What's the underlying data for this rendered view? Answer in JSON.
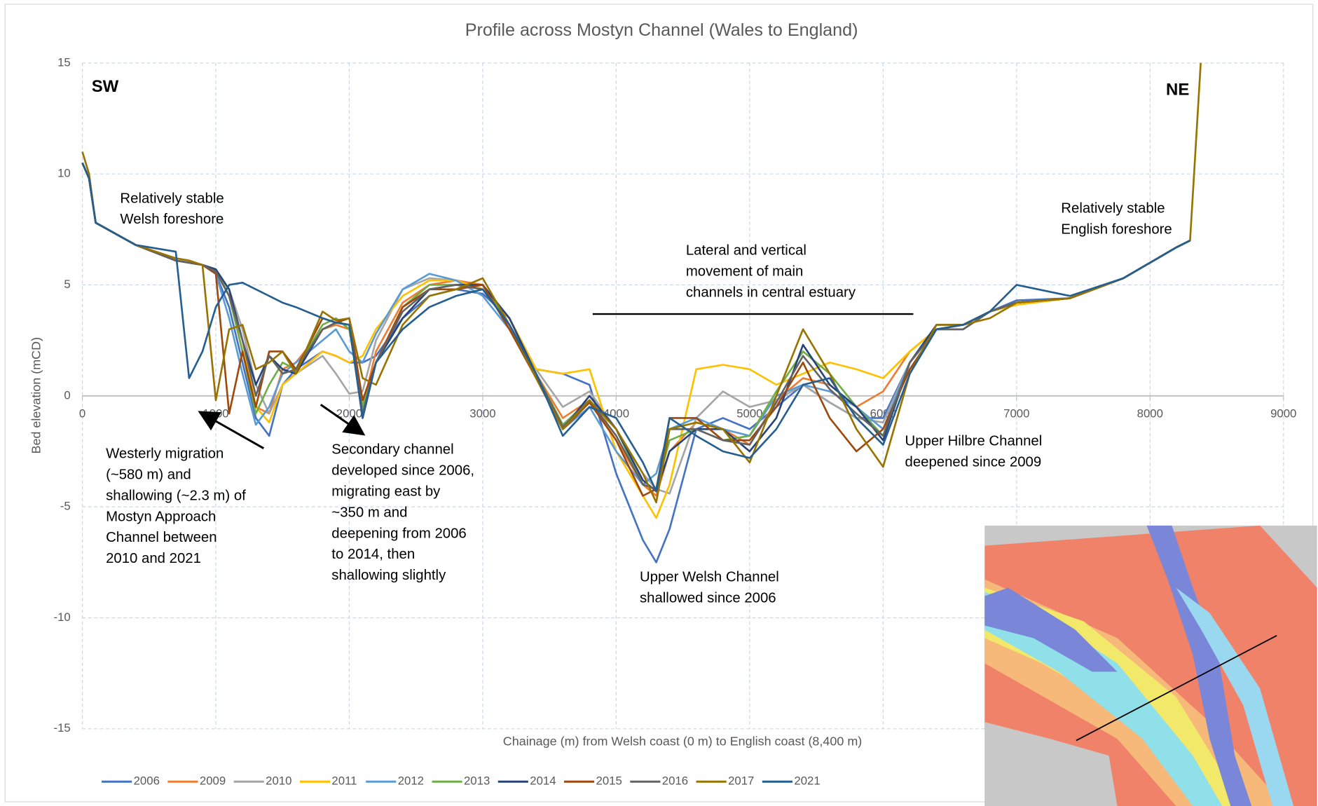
{
  "chart_data": {
    "type": "line",
    "title": "Profile across Mostyn Channel (Wales to England)",
    "x_label": "Chainage (m) from Welsh coast (0 m) to English coast (8,400 m)",
    "y_label": "Bed elevation (mCD)",
    "labels": [
      "SW",
      "NE"
    ],
    "annotations": [
      [
        "Relatively stable",
        "Welsh foreshore"
      ],
      [
        "Relatively stable",
        "English foreshore"
      ],
      [
        "Lateral and vertical",
        "movement of main",
        "channels in central estuary"
      ],
      [
        "Westerly migration",
        "(~580 m) and",
        "shallowing (~2.3 m) of",
        "Mostyn Approach",
        "Channel between",
        "2010 and 2021"
      ],
      [
        "Secondary channel",
        "developed since 2006,",
        "migrating east by",
        "~350 m and",
        "deepening from 2006",
        "to 2014, then",
        "shallowing slightly"
      ],
      [
        "Upper Welsh Channel",
        "shallowed since 2006"
      ],
      [
        "Upper Hilbre Channel",
        "deepened since 2009"
      ]
    ],
    "xlim": [
      0,
      9000
    ],
    "xticks": [
      0,
      1000,
      2000,
      3000,
      4000,
      5000,
      6000,
      7000,
      8000,
      9000
    ],
    "ylim": [
      -15,
      15
    ],
    "yticks": [
      -15,
      -10,
      -5,
      0,
      5,
      10,
      15
    ],
    "grid": true,
    "x": [
      0,
      50,
      100,
      400,
      700,
      800,
      900,
      1000,
      1100,
      1200,
      1300,
      1400,
      1500,
      1600,
      1800,
      1900,
      2000,
      2100,
      2200,
      2400,
      2600,
      2800,
      3000,
      3200,
      3400,
      3600,
      3800,
      4000,
      4200,
      4300,
      4400,
      4600,
      4800,
      5000,
      5200,
      5400,
      5600,
      5800,
      6000,
      6200,
      6400,
      6600,
      6800,
      7000,
      7400,
      7800,
      8200,
      8300,
      8380
    ],
    "series": [
      {
        "name": "2006",
        "color": "#4472c4",
        "values": [
          10.5,
          9.8,
          7.8,
          6.8,
          6.1,
          6.0,
          5.9,
          5.5,
          4.0,
          1.5,
          -1.0,
          -1.8,
          0.5,
          1.2,
          2.0,
          1.8,
          1.5,
          1.5,
          1.8,
          3.5,
          4.5,
          4.8,
          4.6,
          3.5,
          1.2,
          1.0,
          0.5,
          -3.5,
          -6.5,
          -7.5,
          -6.0,
          -1.5,
          -1.0,
          -1.5,
          -0.5,
          0.5,
          -0.3,
          -1.0,
          -1.0,
          1.5,
          3.0,
          3.2,
          3.8,
          4.3,
          4.4,
          5.3,
          6.7,
          7.0,
          null
        ]
      },
      {
        "name": "2009",
        "color": "#ed7d31",
        "values": [
          10.5,
          9.8,
          7.8,
          6.8,
          6.1,
          6.0,
          5.9,
          5.7,
          4.5,
          2.0,
          -0.5,
          -0.8,
          1.2,
          1.5,
          3.0,
          3.2,
          3.0,
          -0.5,
          2.0,
          4.2,
          5.0,
          5.2,
          5.0,
          3.2,
          1.0,
          -1.0,
          -0.2,
          -2.0,
          -4.0,
          -4.5,
          -2.5,
          -1.2,
          -1.5,
          -2.2,
          -0.2,
          0.8,
          0.5,
          -0.5,
          0.2,
          2.0,
          3.0,
          3.2,
          3.8,
          4.2,
          4.4,
          5.3,
          6.7,
          7.0,
          null
        ]
      },
      {
        "name": "2010",
        "color": "#a5a5a5",
        "values": [
          10.5,
          9.8,
          7.8,
          6.8,
          6.1,
          6.0,
          5.9,
          5.6,
          4.8,
          3.0,
          0.5,
          -0.8,
          0.5,
          1.0,
          1.8,
          1.0,
          0.1,
          0.2,
          2.5,
          4.8,
          5.3,
          5.2,
          4.8,
          3.2,
          1.2,
          -0.5,
          0.2,
          -1.5,
          -3.5,
          -4.2,
          -4.4,
          -1.0,
          0.2,
          -0.5,
          -0.2,
          0.5,
          -0.3,
          -1.0,
          -1.2,
          1.5,
          3.0,
          3.0,
          3.8,
          4.2,
          4.4,
          5.3,
          6.7,
          7.0,
          null
        ]
      },
      {
        "name": "2011",
        "color": "#ffc000",
        "values": [
          10.5,
          9.8,
          7.8,
          6.8,
          6.1,
          6.0,
          5.9,
          5.6,
          4.5,
          2.5,
          -0.5,
          -1.2,
          0.5,
          1.0,
          2.0,
          1.8,
          1.5,
          1.8,
          3.0,
          4.5,
          5.2,
          5.2,
          4.8,
          3.5,
          1.2,
          1.0,
          1.2,
          -2.5,
          -4.5,
          -5.5,
          -4.0,
          1.2,
          1.4,
          1.2,
          0.5,
          1.0,
          1.5,
          1.2,
          0.8,
          2.0,
          3.0,
          3.2,
          3.8,
          4.1,
          4.4,
          5.3,
          6.7,
          7.0,
          null
        ]
      },
      {
        "name": "2012",
        "color": "#5b9bd5",
        "values": [
          10.5,
          9.8,
          7.8,
          6.8,
          6.1,
          6.0,
          5.9,
          5.5,
          3.5,
          1.0,
          -1.3,
          -0.5,
          1.0,
          1.5,
          2.5,
          3.0,
          2.0,
          1.5,
          2.8,
          4.8,
          5.5,
          5.2,
          4.5,
          3.0,
          1.0,
          -1.5,
          -0.5,
          -2.5,
          -4.0,
          -3.5,
          -1.5,
          -1.0,
          -1.5,
          -1.8,
          0.0,
          0.5,
          0.2,
          -0.5,
          -1.5,
          1.5,
          3.0,
          3.0,
          3.8,
          4.2,
          4.4,
          5.3,
          6.7,
          7.0,
          null
        ]
      },
      {
        "name": "2013",
        "color": "#70ad47",
        "values": [
          10.5,
          9.8,
          7.8,
          6.8,
          6.1,
          6.0,
          5.9,
          5.7,
          4.5,
          2.0,
          -0.8,
          0.5,
          1.5,
          1.2,
          3.2,
          3.5,
          3.0,
          -0.5,
          1.5,
          4.0,
          5.0,
          5.0,
          5.0,
          3.2,
          1.0,
          -1.3,
          -0.2,
          -1.5,
          -4.0,
          -4.2,
          -2.0,
          -1.5,
          -2.0,
          -1.8,
          0.2,
          2.0,
          1.0,
          -0.5,
          -1.8,
          1.5,
          3.0,
          3.0,
          3.8,
          4.2,
          4.4,
          5.3,
          6.7,
          7.0,
          null
        ]
      },
      {
        "name": "2014",
        "color": "#264478",
        "values": [
          10.5,
          9.8,
          7.8,
          6.8,
          6.1,
          6.0,
          5.9,
          5.7,
          4.8,
          2.5,
          0.5,
          1.8,
          1.2,
          1.0,
          3.0,
          3.3,
          3.2,
          -1.0,
          1.5,
          3.5,
          4.8,
          5.0,
          5.0,
          3.5,
          1.0,
          -1.5,
          0.0,
          -1.5,
          -3.8,
          -4.3,
          -2.5,
          -1.5,
          -1.5,
          -2.5,
          -1.0,
          2.3,
          0.5,
          -0.5,
          -2.0,
          1.5,
          3.2,
          3.2,
          3.8,
          4.2,
          4.4,
          5.3,
          6.7,
          7.0,
          null
        ]
      },
      {
        "name": "2015",
        "color": "#9e480e",
        "values": [
          10.5,
          9.8,
          7.8,
          6.8,
          6.1,
          6.0,
          5.9,
          5.5,
          -0.8,
          2.0,
          -0.5,
          2.0,
          2.0,
          1.2,
          3.5,
          3.3,
          3.5,
          -0.2,
          1.5,
          4.0,
          4.8,
          4.8,
          5.0,
          3.0,
          0.8,
          -1.5,
          -0.3,
          -2.0,
          -4.5,
          -4.2,
          -1.0,
          -1.0,
          -2.0,
          -2.0,
          -0.5,
          1.5,
          -1.0,
          -2.5,
          -1.5,
          1.2,
          3.0,
          3.0,
          3.8,
          4.2,
          4.4,
          5.3,
          6.7,
          7.0,
          null
        ]
      },
      {
        "name": "2016",
        "color": "#636363",
        "values": [
          10.5,
          9.8,
          7.8,
          6.8,
          6.1,
          6.0,
          5.9,
          5.6,
          4.5,
          2.5,
          0.0,
          1.8,
          1.0,
          1.2,
          3.0,
          3.3,
          3.2,
          -0.8,
          1.5,
          3.8,
          4.8,
          5.0,
          4.8,
          3.2,
          1.0,
          -1.4,
          -0.2,
          -1.8,
          -4.0,
          -4.2,
          -1.5,
          -1.5,
          -2.0,
          -2.2,
          -0.3,
          1.8,
          0.3,
          -0.8,
          -1.8,
          1.5,
          3.0,
          3.0,
          3.8,
          4.2,
          4.4,
          5.3,
          6.7,
          7.0,
          null
        ]
      },
      {
        "name": "2017",
        "color": "#997300",
        "values": [
          11,
          10,
          7.8,
          6.8,
          6.2,
          6.1,
          5.9,
          -0.2,
          3.0,
          3.2,
          1.2,
          1.5,
          2.0,
          1.0,
          3.8,
          3.4,
          3.5,
          0.8,
          0.5,
          3.2,
          4.5,
          4.8,
          5.3,
          3.2,
          0.8,
          -1.5,
          -0.2,
          -1.5,
          -3.5,
          -4.8,
          -1.5,
          -1.2,
          -1.5,
          -3.0,
          0.0,
          3.0,
          1.0,
          -1.5,
          -3.2,
          1.0,
          3.2,
          3.2,
          3.5,
          4.2,
          4.4,
          5.3,
          6.7,
          7.0,
          15
        ]
      },
      {
        "name": "2021",
        "color": "#255e91",
        "values": [
          10.5,
          9.8,
          7.8,
          6.8,
          6.5,
          0.8,
          2.0,
          4.0,
          5.0,
          5.1,
          4.8,
          4.5,
          4.2,
          4.0,
          3.5,
          3.3,
          3.2,
          -1.0,
          1.5,
          3.0,
          4.0,
          4.5,
          4.8,
          3.2,
          1.0,
          -1.8,
          -0.5,
          -1.0,
          -3.0,
          -4.3,
          -1.0,
          -1.8,
          -2.5,
          -2.8,
          -1.5,
          0.5,
          0.8,
          -1.0,
          -2.2,
          1.0,
          3.0,
          3.2,
          3.8,
          5.0,
          4.5,
          5.3,
          6.7,
          7.0,
          null
        ]
      }
    ]
  }
}
